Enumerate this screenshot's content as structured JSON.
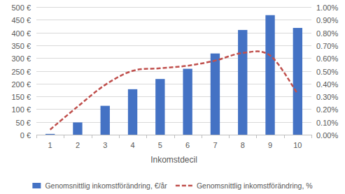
{
  "chart_data": {
    "type": "bar",
    "x_label": "Inkomstdecil",
    "categories": [
      "1",
      "2",
      "3",
      "4",
      "5",
      "6",
      "7",
      "8",
      "9",
      "10"
    ],
    "series": [
      {
        "name": "Genomsnittlig inkomstförändring, €/år",
        "type": "bar",
        "color": "#4472c4",
        "values": [
          3,
          48,
          113,
          178,
          218,
          258,
          318,
          410,
          468,
          418
        ]
      },
      {
        "name": "Genomsnittlig inkomstförändring, %",
        "type": "line",
        "axis": "y2",
        "color": "#c0504d",
        "line_style": "dashed",
        "values": [
          0.04,
          0.22,
          0.39,
          0.5,
          0.52,
          0.54,
          0.58,
          0.64,
          0.62,
          0.32
        ]
      }
    ],
    "ylim": [
      0,
      500
    ],
    "yticks": [
      {
        "value": 0,
        "label": "0 €"
      },
      {
        "value": 50,
        "label": "50 €"
      },
      {
        "value": 100,
        "label": "100 €"
      },
      {
        "value": 150,
        "label": "150 €"
      },
      {
        "value": 200,
        "label": "200 €"
      },
      {
        "value": 250,
        "label": "250 €"
      },
      {
        "value": 300,
        "label": "300 €"
      },
      {
        "value": 350,
        "label": "350 €"
      },
      {
        "value": 400,
        "label": "400 €"
      },
      {
        "value": 450,
        "label": "450 €"
      },
      {
        "value": 500,
        "label": "500 €"
      }
    ],
    "y2lim": [
      0,
      1
    ],
    "y2ticks": [
      {
        "value": 0,
        "label": "0.00%"
      },
      {
        "value": 0.1,
        "label": "0.10%"
      },
      {
        "value": 0.2,
        "label": "0.20%"
      },
      {
        "value": 0.3,
        "label": "0.30%"
      },
      {
        "value": 0.4,
        "label": "0.40%"
      },
      {
        "value": 0.5,
        "label": "0.50%"
      },
      {
        "value": 0.6,
        "label": "0.60%"
      },
      {
        "value": 0.7,
        "label": "0.70%"
      },
      {
        "value": 0.8,
        "label": "0.80%"
      },
      {
        "value": 0.9,
        "label": "0.90%"
      },
      {
        "value": 1,
        "label": "1.00%"
      }
    ],
    "grid": true,
    "legend": "bottom"
  }
}
